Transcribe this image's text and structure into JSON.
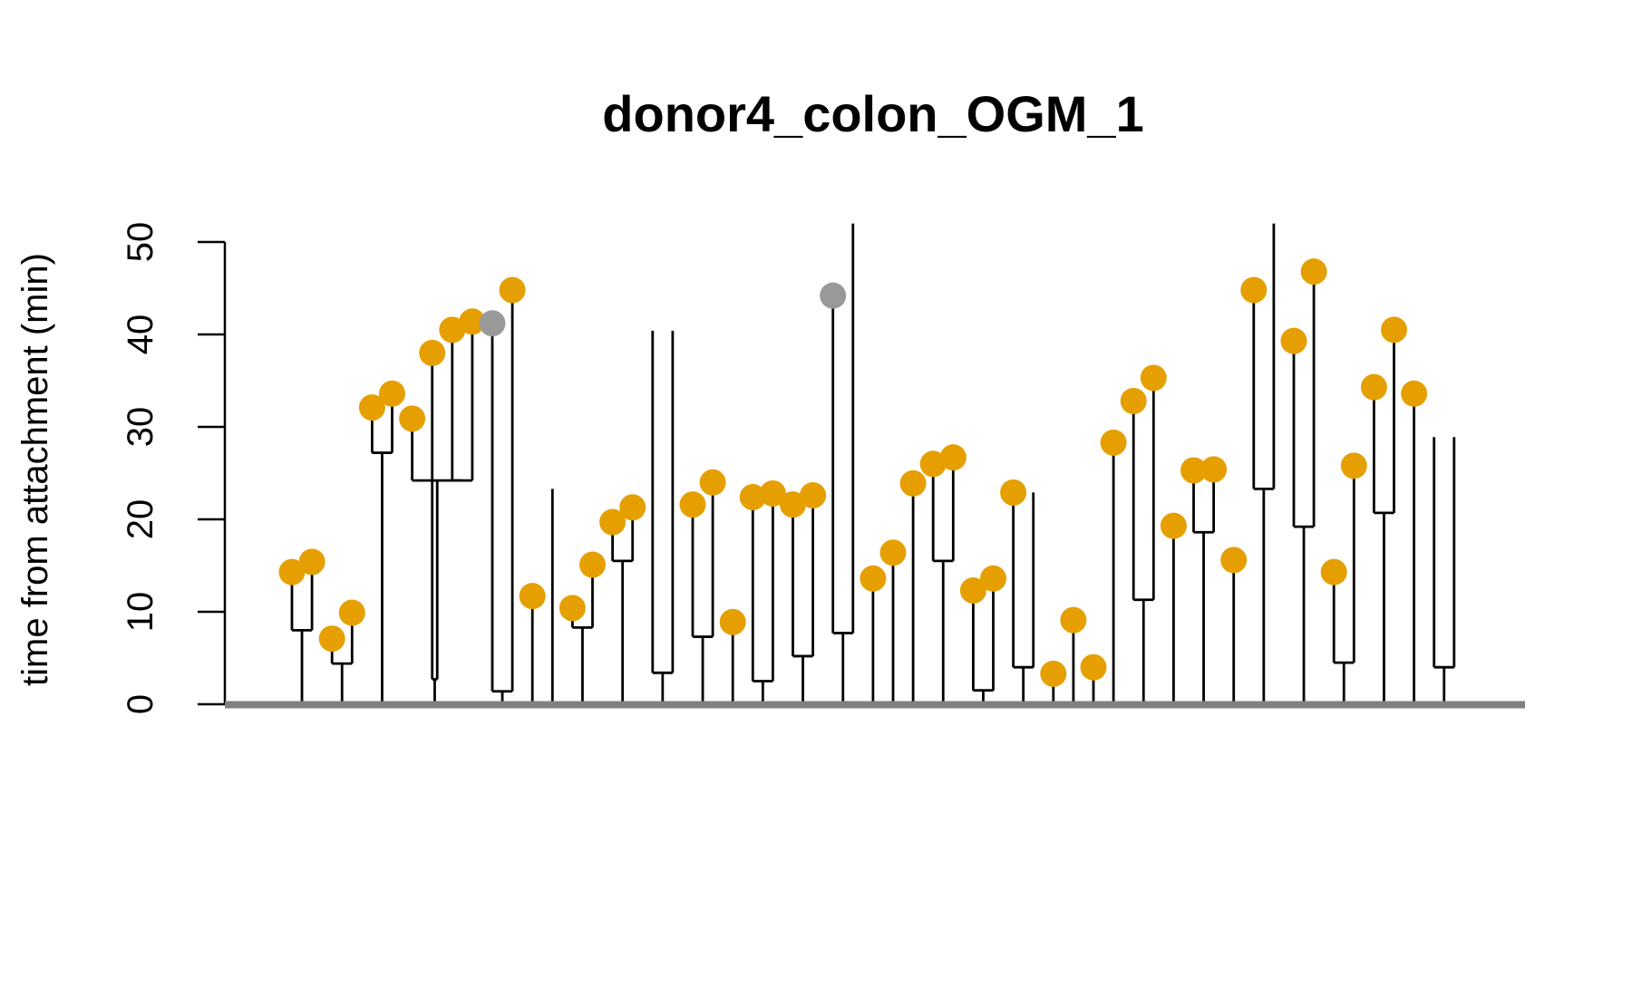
{
  "chart_data": {
    "type": "tree",
    "title": "donor4_colon_OGM_1",
    "ylabel": "time from attachment (min)",
    "xlabel": "",
    "ylim": [
      0,
      50
    ],
    "yticks": [
      0,
      10,
      20,
      30,
      40,
      50
    ],
    "grid": false,
    "legend": "none",
    "colors": {
      "leaf": "#E69F00",
      "leaf_alt": "#999999",
      "line": "#000000",
      "baseline": "#808080"
    },
    "leaves": [
      {
        "id": 1,
        "y": 14.3,
        "color": "leaf"
      },
      {
        "id": 2,
        "y": 15.4,
        "color": "leaf"
      },
      {
        "id": 3,
        "y": 7.1,
        "color": "leaf"
      },
      {
        "id": 4,
        "y": 9.9,
        "color": "leaf"
      },
      {
        "id": 5,
        "y": 32.1,
        "color": "leaf"
      },
      {
        "id": 6,
        "y": 33.6,
        "color": "leaf"
      },
      {
        "id": 7,
        "y": 30.9,
        "color": "leaf"
      },
      {
        "id": 8,
        "y": 38.0,
        "color": "leaf"
      },
      {
        "id": 9,
        "y": 40.5,
        "color": "leaf"
      },
      {
        "id": 10,
        "y": 41.4,
        "color": "leaf"
      },
      {
        "id": 11,
        "y": 41.2,
        "color": "leaf_alt"
      },
      {
        "id": 12,
        "y": 44.8,
        "color": "leaf"
      },
      {
        "id": 13,
        "y": 11.7,
        "color": "leaf"
      },
      {
        "id": 14,
        "y": 23.3,
        "color": "none"
      },
      {
        "id": 15,
        "y": 10.4,
        "color": "leaf"
      },
      {
        "id": 16,
        "y": 15.1,
        "color": "leaf"
      },
      {
        "id": 17,
        "y": 19.7,
        "color": "leaf"
      },
      {
        "id": 18,
        "y": 21.3,
        "color": "leaf"
      },
      {
        "id": 19,
        "y": 40.4,
        "color": "none"
      },
      {
        "id": 20,
        "y": 40.4,
        "color": "none"
      },
      {
        "id": 21,
        "y": 21.6,
        "color": "leaf"
      },
      {
        "id": 22,
        "y": 24.0,
        "color": "leaf"
      },
      {
        "id": 23,
        "y": 8.9,
        "color": "leaf"
      },
      {
        "id": 24,
        "y": 22.4,
        "color": "leaf"
      },
      {
        "id": 25,
        "y": 22.8,
        "color": "leaf"
      },
      {
        "id": 26,
        "y": 21.6,
        "color": "leaf"
      },
      {
        "id": 27,
        "y": 22.6,
        "color": "leaf"
      },
      {
        "id": 28,
        "y": 44.2,
        "color": "leaf_alt"
      },
      {
        "id": 29,
        "y": 52.0,
        "color": "none"
      },
      {
        "id": 30,
        "y": 13.6,
        "color": "leaf"
      },
      {
        "id": 31,
        "y": 16.4,
        "color": "leaf"
      },
      {
        "id": 32,
        "y": 23.9,
        "color": "leaf"
      },
      {
        "id": 33,
        "y": 26.0,
        "color": "leaf"
      },
      {
        "id": 34,
        "y": 26.7,
        "color": "leaf"
      },
      {
        "id": 35,
        "y": 12.3,
        "color": "leaf"
      },
      {
        "id": 36,
        "y": 13.6,
        "color": "leaf"
      },
      {
        "id": 37,
        "y": 22.9,
        "color": "leaf"
      },
      {
        "id": 38,
        "y": 22.9,
        "color": "none"
      },
      {
        "id": 39,
        "y": 3.3,
        "color": "leaf"
      },
      {
        "id": 40,
        "y": 9.1,
        "color": "leaf"
      },
      {
        "id": 41,
        "y": 4.0,
        "color": "leaf"
      },
      {
        "id": 42,
        "y": 28.3,
        "color": "leaf"
      },
      {
        "id": 43,
        "y": 32.8,
        "color": "leaf"
      },
      {
        "id": 44,
        "y": 35.3,
        "color": "leaf"
      },
      {
        "id": 45,
        "y": 19.3,
        "color": "leaf"
      },
      {
        "id": 46,
        "y": 25.3,
        "color": "leaf"
      },
      {
        "id": 47,
        "y": 25.4,
        "color": "leaf"
      },
      {
        "id": 48,
        "y": 15.6,
        "color": "leaf"
      },
      {
        "id": 49,
        "y": 44.8,
        "color": "leaf"
      },
      {
        "id": 50,
        "y": 52.0,
        "color": "none"
      },
      {
        "id": 51,
        "y": 39.3,
        "color": "leaf"
      },
      {
        "id": 52,
        "y": 46.8,
        "color": "leaf"
      },
      {
        "id": 53,
        "y": 14.3,
        "color": "leaf"
      },
      {
        "id": 54,
        "y": 25.8,
        "color": "leaf"
      },
      {
        "id": 55,
        "y": 34.3,
        "color": "leaf"
      },
      {
        "id": 56,
        "y": 40.5,
        "color": "leaf"
      },
      {
        "id": 57,
        "y": 33.6,
        "color": "leaf"
      },
      {
        "id": 58,
        "y": 28.9,
        "color": "none"
      },
      {
        "id": 59,
        "y": 28.9,
        "color": "none"
      }
    ],
    "splits": [
      {
        "id": "p1",
        "children": [
          1,
          2
        ],
        "y": 8.0
      },
      {
        "id": "p2",
        "children": [
          3,
          4
        ],
        "y": 4.4
      },
      {
        "id": "p3",
        "children": [
          5,
          6
        ],
        "y": 27.2
      },
      {
        "id": "p4",
        "children": [
          9,
          10
        ],
        "y": 24.2
      },
      {
        "id": "p5",
        "children": [
          7,
          "p4"
        ],
        "y": 24.2
      },
      {
        "id": "p6",
        "children": [
          8,
          "p5"
        ],
        "y": 2.7
      },
      {
        "id": "p7",
        "children": [
          11,
          12
        ],
        "y": 1.4
      },
      {
        "id": "p8",
        "children": [
          15,
          16
        ],
        "y": 8.3
      },
      {
        "id": "p9",
        "children": [
          17,
          18
        ],
        "y": 15.5
      },
      {
        "id": "p10",
        "children": [
          19,
          20
        ],
        "y": 3.4
      },
      {
        "id": "p11",
        "children": [
          21,
          22
        ],
        "y": 7.3
      },
      {
        "id": "p12",
        "children": [
          24,
          25
        ],
        "y": 2.5
      },
      {
        "id": "p13",
        "children": [
          26,
          27
        ],
        "y": 5.2
      },
      {
        "id": "p14",
        "children": [
          28,
          29
        ],
        "y": 7.7
      },
      {
        "id": "p15",
        "children": [
          33,
          34
        ],
        "y": 15.5
      },
      {
        "id": "p16",
        "children": [
          35,
          36
        ],
        "y": 1.5
      },
      {
        "id": "p17",
        "children": [
          37,
          38
        ],
        "y": 4.0
      },
      {
        "id": "p18",
        "children": [
          43,
          44
        ],
        "y": 11.3
      },
      {
        "id": "p19",
        "children": [
          46,
          47
        ],
        "y": 18.6
      },
      {
        "id": "p20",
        "children": [
          49,
          50
        ],
        "y": 23.3
      },
      {
        "id": "p21",
        "children": [
          51,
          52
        ],
        "y": 19.2
      },
      {
        "id": "p22",
        "children": [
          53,
          54
        ],
        "y": 4.5
      },
      {
        "id": "p23",
        "children": [
          55,
          56
        ],
        "y": 20.7
      },
      {
        "id": "p24",
        "children": [
          58,
          59
        ],
        "y": 4.0
      }
    ]
  }
}
